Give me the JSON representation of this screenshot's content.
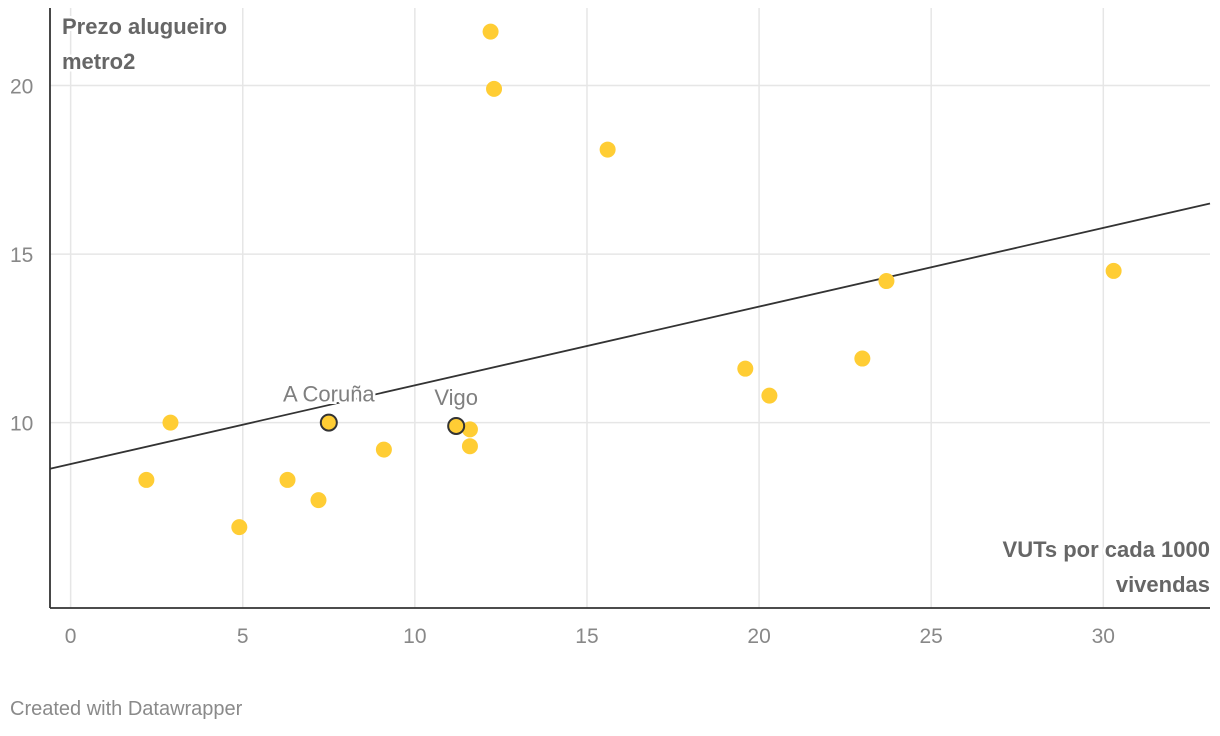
{
  "chart_data": {
    "type": "scatter",
    "title": "",
    "ylabel_lines": [
      "Prezo alugueiro",
      "metro2"
    ],
    "xlabel_lines": [
      "VUTs por cada 1000",
      "vivendas"
    ],
    "xlim": [
      -0.6,
      33.1
    ],
    "ylim": [
      4.5,
      22.3
    ],
    "x_ticks": [
      0,
      5,
      10,
      15,
      20,
      25,
      30
    ],
    "y_ticks": [
      10,
      15,
      20
    ],
    "grid": true,
    "point_color": "#ffcd34",
    "highlight_stroke": "#333333",
    "trend_color": "#333333",
    "trendline": {
      "x": [
        -0.6,
        33.1
      ],
      "y": [
        8.63,
        16.5
      ]
    },
    "points": [
      {
        "x": 2.2,
        "y": 8.3
      },
      {
        "x": 2.9,
        "y": 10.0
      },
      {
        "x": 4.9,
        "y": 6.9
      },
      {
        "x": 6.3,
        "y": 8.3
      },
      {
        "x": 7.2,
        "y": 7.7
      },
      {
        "x": 9.1,
        "y": 9.2
      },
      {
        "x": 11.6,
        "y": 9.8
      },
      {
        "x": 11.6,
        "y": 9.3
      },
      {
        "x": 12.2,
        "y": 21.6
      },
      {
        "x": 12.3,
        "y": 19.9
      },
      {
        "x": 15.6,
        "y": 18.1
      },
      {
        "x": 19.6,
        "y": 11.6
      },
      {
        "x": 20.3,
        "y": 10.8
      },
      {
        "x": 23.0,
        "y": 11.9
      },
      {
        "x": 23.7,
        "y": 14.2
      },
      {
        "x": 30.3,
        "y": 14.5
      },
      {
        "x": 7.5,
        "y": 10.0,
        "label": "A Coruña",
        "highlight": true
      },
      {
        "x": 11.2,
        "y": 9.9,
        "label": "Vigo",
        "highlight": true
      }
    ]
  },
  "footer": {
    "text": "Created with Datawrapper"
  }
}
